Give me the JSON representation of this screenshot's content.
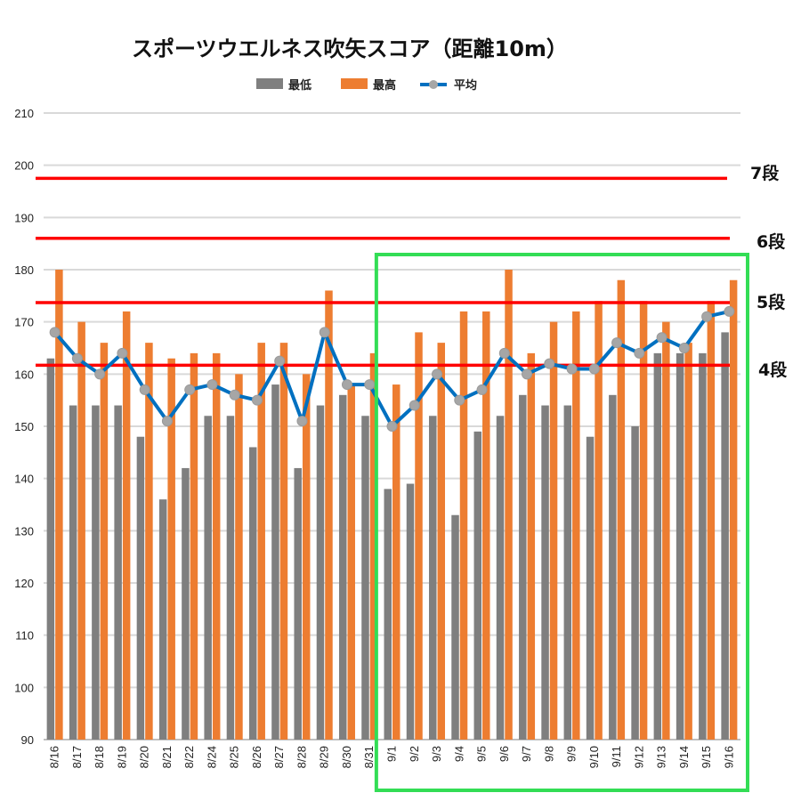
{
  "colors": {
    "min": "#7f7f7f",
    "max": "#ed7d31",
    "avg_line": "#0070c0",
    "avg_marker": "#a6a6a6",
    "rank_line": "#ff0000",
    "highlight_box": "#33dd55",
    "grid": "#d9d9d9"
  },
  "chart_data": {
    "type": "bar",
    "title": "スポーツウエルネス吹矢スコア（距離10m）",
    "categories": [
      "8/16",
      "8/17",
      "8/18",
      "8/19",
      "8/20",
      "8/21",
      "8/22",
      "8/24",
      "8/25",
      "8/26",
      "8/27",
      "8/28",
      "8/29",
      "8/30",
      "8/31",
      "9/1",
      "9/2",
      "9/3",
      "9/4",
      "9/5",
      "9/6",
      "9/7",
      "9/8",
      "9/9",
      "9/10",
      "9/11",
      "9/12",
      "9/13",
      "9/14",
      "9/15",
      "9/16"
    ],
    "series": [
      {
        "name": "最低",
        "kind": "bar",
        "values": [
          163,
          154,
          154,
          154,
          148,
          136,
          142,
          152,
          152,
          146,
          158,
          142,
          154,
          156,
          152,
          138,
          139,
          152,
          133,
          149,
          152,
          156,
          154,
          154,
          148,
          156,
          150,
          164,
          164,
          164,
          168
        ]
      },
      {
        "name": "最高",
        "kind": "bar",
        "values": [
          180,
          170,
          166,
          172,
          166,
          163,
          164,
          164,
          160,
          166,
          166,
          160,
          176,
          158,
          164,
          158,
          168,
          166,
          172,
          172,
          180,
          164,
          170,
          172,
          174,
          178,
          174,
          170,
          166,
          174,
          178
        ]
      },
      {
        "name": "平均",
        "kind": "line",
        "values": [
          168,
          163,
          160,
          164,
          157,
          151,
          157,
          158,
          156,
          155,
          162.5,
          151,
          168,
          158,
          158,
          150,
          154,
          160,
          155,
          157,
          164,
          160,
          162,
          161,
          161,
          166,
          164,
          167,
          165,
          171,
          172
        ]
      }
    ],
    "ylim": [
      90,
      210
    ],
    "yticks": [
      90,
      100,
      110,
      120,
      130,
      140,
      150,
      160,
      170,
      180,
      190,
      200,
      210
    ],
    "grid": true,
    "legend": "top",
    "reference_lines": [
      {
        "label": "7段",
        "value": 197.5
      },
      {
        "label": "6段",
        "value": 186
      },
      {
        "label": "5段",
        "value": 173.7
      },
      {
        "label": "4段",
        "value": 161.7
      }
    ],
    "highlight": {
      "from": "9/1",
      "to": "9/16"
    }
  }
}
